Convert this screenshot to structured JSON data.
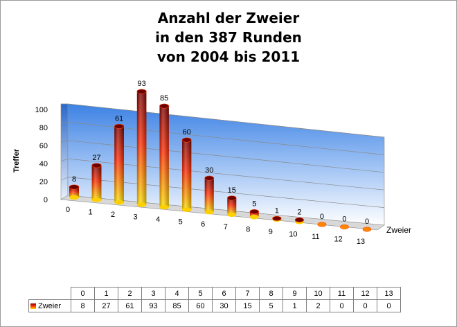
{
  "title_lines": [
    "Anzahl der Zweier",
    "in den 387 Runden",
    "von 2004 bis 2011"
  ],
  "chart_data": {
    "type": "bar",
    "title": "Anzahl der Zweier in den 387 Runden von 2004 bis 2011",
    "xlabel": "Zweier",
    "ylabel": "Treffer",
    "categories": [
      "0",
      "1",
      "2",
      "3",
      "4",
      "5",
      "6",
      "7",
      "8",
      "9",
      "10",
      "11",
      "12",
      "13"
    ],
    "series": [
      {
        "name": "Zweier",
        "values": [
          8,
          27,
          61,
          93,
          85,
          60,
          30,
          15,
          5,
          1,
          2,
          0,
          0,
          0
        ]
      }
    ],
    "ylim": [
      0,
      100
    ],
    "yticks": [
      "0",
      "20",
      "40",
      "60",
      "80",
      "100"
    ],
    "grid": true,
    "data_labels": true,
    "style": "3d-cylinder",
    "colors": {
      "bar_top": "#8b0000",
      "bar_mid": "#ff3300",
      "bar_bottom": "#ffd800",
      "wall_top": "#3a7fe0",
      "wall_bottom": "#ffffff"
    }
  },
  "table": {
    "series_label": "Zweier"
  }
}
